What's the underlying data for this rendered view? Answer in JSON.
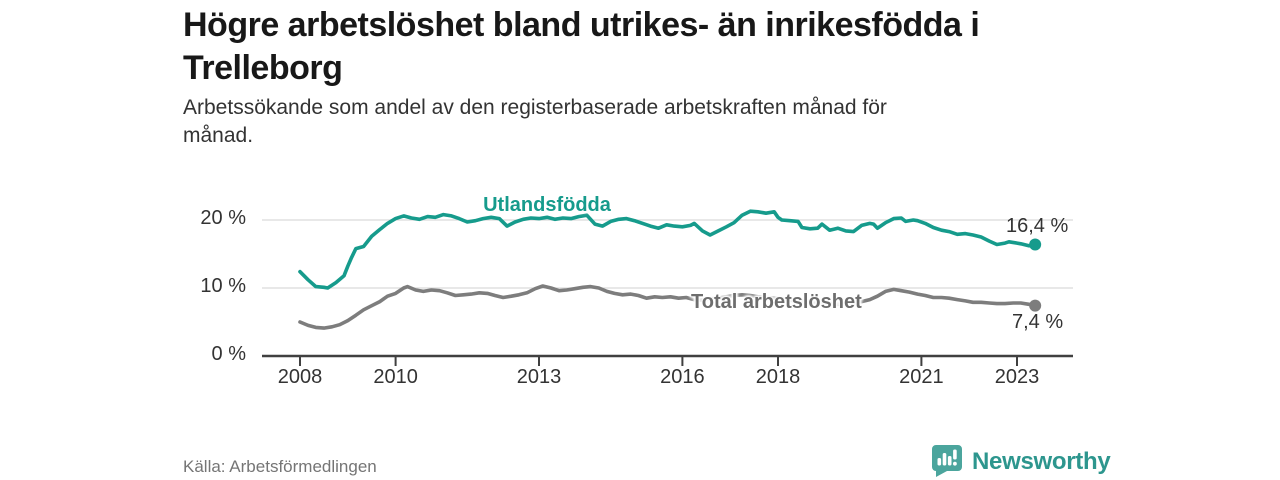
{
  "header": {
    "title": "Högre arbetslöshet bland utrikes- än inrikesfödda i Trelleborg",
    "subtitle": "Arbetssökande som andel av den registerbaserade arbetskraften månad för månad."
  },
  "chart_data": {
    "type": "line",
    "title": "Högre arbetslöshet bland utrikes- än inrikesfödda i Trelleborg",
    "subtitle": "Arbetssökande som andel av den registerbaserade arbetskraften månad för månad.",
    "unit": "%",
    "grid": "horizontal",
    "legend": "inline-labels",
    "x_axis": {
      "ticks": [
        2008,
        2010,
        2013,
        2016,
        2018,
        2021,
        2023
      ],
      "tick_labels": [
        "2008",
        "2010",
        "2013",
        "2016",
        "2018",
        "2021",
        "2023"
      ],
      "range": [
        2007.2,
        2024.3
      ]
    },
    "y_axis": {
      "ticks": [
        0,
        10,
        20
      ],
      "tick_labels": [
        "0 %",
        "10 %",
        "20 %"
      ],
      "range": [
        0,
        23
      ]
    },
    "series": [
      {
        "name": "Utlandsfödda",
        "color": "#169b8c",
        "end_label": "16,4 %",
        "end_value": 16.4,
        "points": [
          [
            2008.0,
            12.4
          ],
          [
            2008.17,
            11.2
          ],
          [
            2008.33,
            10.2
          ],
          [
            2008.5,
            10.1
          ],
          [
            2008.58,
            10.0
          ],
          [
            2008.75,
            10.8
          ],
          [
            2008.92,
            11.8
          ],
          [
            2009.0,
            13.2
          ],
          [
            2009.08,
            14.5
          ],
          [
            2009.17,
            15.8
          ],
          [
            2009.33,
            16.1
          ],
          [
            2009.5,
            17.6
          ],
          [
            2009.67,
            18.6
          ],
          [
            2009.83,
            19.5
          ],
          [
            2010.0,
            20.2
          ],
          [
            2010.17,
            20.6
          ],
          [
            2010.33,
            20.3
          ],
          [
            2010.5,
            20.1
          ],
          [
            2010.67,
            20.5
          ],
          [
            2010.83,
            20.4
          ],
          [
            2011.0,
            20.8
          ],
          [
            2011.17,
            20.6
          ],
          [
            2011.33,
            20.2
          ],
          [
            2011.5,
            19.7
          ],
          [
            2011.67,
            19.9
          ],
          [
            2011.83,
            20.2
          ],
          [
            2012.0,
            20.4
          ],
          [
            2012.17,
            20.2
          ],
          [
            2012.33,
            19.1
          ],
          [
            2012.5,
            19.7
          ],
          [
            2012.67,
            20.1
          ],
          [
            2012.83,
            20.3
          ],
          [
            2013.0,
            20.2
          ],
          [
            2013.17,
            20.4
          ],
          [
            2013.33,
            20.1
          ],
          [
            2013.5,
            20.3
          ],
          [
            2013.67,
            20.2
          ],
          [
            2013.83,
            20.5
          ],
          [
            2014.0,
            20.7
          ],
          [
            2014.17,
            19.4
          ],
          [
            2014.33,
            19.1
          ],
          [
            2014.5,
            19.8
          ],
          [
            2014.67,
            20.1
          ],
          [
            2014.83,
            20.2
          ],
          [
            2015.0,
            19.9
          ],
          [
            2015.17,
            19.5
          ],
          [
            2015.33,
            19.1
          ],
          [
            2015.5,
            18.8
          ],
          [
            2015.67,
            19.3
          ],
          [
            2015.83,
            19.1
          ],
          [
            2016.0,
            19.0
          ],
          [
            2016.17,
            19.2
          ],
          [
            2016.25,
            19.5
          ],
          [
            2016.42,
            18.4
          ],
          [
            2016.58,
            17.8
          ],
          [
            2016.75,
            18.4
          ],
          [
            2016.92,
            19.0
          ],
          [
            2017.08,
            19.6
          ],
          [
            2017.25,
            20.7
          ],
          [
            2017.42,
            21.3
          ],
          [
            2017.58,
            21.2
          ],
          [
            2017.75,
            21.0
          ],
          [
            2017.92,
            21.2
          ],
          [
            2018.0,
            20.4
          ],
          [
            2018.08,
            20.0
          ],
          [
            2018.25,
            19.9
          ],
          [
            2018.42,
            19.8
          ],
          [
            2018.5,
            18.9
          ],
          [
            2018.67,
            18.7
          ],
          [
            2018.83,
            18.8
          ],
          [
            2018.92,
            19.4
          ],
          [
            2019.08,
            18.5
          ],
          [
            2019.25,
            18.8
          ],
          [
            2019.42,
            18.4
          ],
          [
            2019.58,
            18.3
          ],
          [
            2019.75,
            19.2
          ],
          [
            2019.92,
            19.5
          ],
          [
            2020.0,
            19.4
          ],
          [
            2020.08,
            18.8
          ],
          [
            2020.25,
            19.6
          ],
          [
            2020.42,
            20.2
          ],
          [
            2020.58,
            20.3
          ],
          [
            2020.67,
            19.8
          ],
          [
            2020.83,
            20.0
          ],
          [
            2020.92,
            19.9
          ],
          [
            2021.08,
            19.5
          ],
          [
            2021.25,
            18.9
          ],
          [
            2021.42,
            18.5
          ],
          [
            2021.58,
            18.3
          ],
          [
            2021.75,
            17.9
          ],
          [
            2021.92,
            18.0
          ],
          [
            2022.08,
            17.8
          ],
          [
            2022.25,
            17.5
          ],
          [
            2022.42,
            16.9
          ],
          [
            2022.58,
            16.4
          ],
          [
            2022.75,
            16.6
          ],
          [
            2022.83,
            16.8
          ],
          [
            2023.0,
            16.6
          ],
          [
            2023.08,
            16.5
          ],
          [
            2023.25,
            16.2
          ],
          [
            2023.38,
            16.4
          ]
        ]
      },
      {
        "name": "Total arbetslöshet",
        "color": "#7d7d7d",
        "end_label": "7,4 %",
        "end_value": 7.4,
        "points": [
          [
            2008.0,
            5.0
          ],
          [
            2008.17,
            4.5
          ],
          [
            2008.33,
            4.2
          ],
          [
            2008.5,
            4.1
          ],
          [
            2008.67,
            4.3
          ],
          [
            2008.83,
            4.6
          ],
          [
            2009.0,
            5.2
          ],
          [
            2009.17,
            6.0
          ],
          [
            2009.33,
            6.8
          ],
          [
            2009.5,
            7.4
          ],
          [
            2009.67,
            8.0
          ],
          [
            2009.83,
            8.8
          ],
          [
            2010.0,
            9.2
          ],
          [
            2010.17,
            10.0
          ],
          [
            2010.25,
            10.2
          ],
          [
            2010.42,
            9.7
          ],
          [
            2010.58,
            9.5
          ],
          [
            2010.75,
            9.7
          ],
          [
            2010.92,
            9.6
          ],
          [
            2011.08,
            9.3
          ],
          [
            2011.25,
            8.9
          ],
          [
            2011.42,
            9.0
          ],
          [
            2011.58,
            9.1
          ],
          [
            2011.75,
            9.3
          ],
          [
            2011.92,
            9.2
          ],
          [
            2012.08,
            8.9
          ],
          [
            2012.25,
            8.6
          ],
          [
            2012.42,
            8.8
          ],
          [
            2012.58,
            9.0
          ],
          [
            2012.75,
            9.3
          ],
          [
            2012.92,
            9.9
          ],
          [
            2013.08,
            10.3
          ],
          [
            2013.25,
            10.0
          ],
          [
            2013.42,
            9.6
          ],
          [
            2013.58,
            9.7
          ],
          [
            2013.75,
            9.9
          ],
          [
            2013.92,
            10.1
          ],
          [
            2014.08,
            10.2
          ],
          [
            2014.25,
            10.0
          ],
          [
            2014.42,
            9.5
          ],
          [
            2014.58,
            9.2
          ],
          [
            2014.75,
            9.0
          ],
          [
            2014.92,
            9.1
          ],
          [
            2015.08,
            8.9
          ],
          [
            2015.25,
            8.5
          ],
          [
            2015.42,
            8.7
          ],
          [
            2015.58,
            8.6
          ],
          [
            2015.75,
            8.7
          ],
          [
            2015.92,
            8.5
          ],
          [
            2016.08,
            8.6
          ],
          [
            2016.25,
            8.3
          ],
          [
            2016.42,
            8.2
          ],
          [
            2016.58,
            8.4
          ],
          [
            2016.75,
            8.5
          ],
          [
            2016.92,
            8.7
          ],
          [
            2017.08,
            8.9
          ],
          [
            2017.25,
            9.0
          ],
          [
            2017.42,
            8.9
          ],
          [
            2017.58,
            8.7
          ],
          [
            2017.75,
            8.6
          ],
          [
            2017.92,
            8.5
          ],
          [
            2018.08,
            8.4
          ],
          [
            2018.25,
            8.2
          ],
          [
            2018.42,
            8.1
          ],
          [
            2018.58,
            8.0
          ],
          [
            2018.75,
            7.9
          ],
          [
            2018.92,
            7.8
          ],
          [
            2019.08,
            7.7
          ],
          [
            2019.25,
            7.6
          ],
          [
            2019.42,
            7.7
          ],
          [
            2019.58,
            7.8
          ],
          [
            2019.75,
            8.0
          ],
          [
            2019.92,
            8.3
          ],
          [
            2020.08,
            8.8
          ],
          [
            2020.25,
            9.5
          ],
          [
            2020.42,
            9.8
          ],
          [
            2020.58,
            9.6
          ],
          [
            2020.75,
            9.4
          ],
          [
            2020.92,
            9.1
          ],
          [
            2021.08,
            8.9
          ],
          [
            2021.25,
            8.6
          ],
          [
            2021.42,
            8.6
          ],
          [
            2021.58,
            8.5
          ],
          [
            2021.75,
            8.3
          ],
          [
            2021.92,
            8.1
          ],
          [
            2022.08,
            7.9
          ],
          [
            2022.25,
            7.9
          ],
          [
            2022.42,
            7.8
          ],
          [
            2022.58,
            7.7
          ],
          [
            2022.75,
            7.7
          ],
          [
            2022.92,
            7.8
          ],
          [
            2023.08,
            7.8
          ],
          [
            2023.25,
            7.6
          ],
          [
            2023.38,
            7.4
          ]
        ]
      }
    ]
  },
  "footer": {
    "source": "Källa: Arbetsförmedlingen",
    "brand": "Newsworthy"
  },
  "colors": {
    "accent_teal": "#169b8c",
    "line_gray": "#7d7d7d",
    "series_label_gray": "#6d6d6d",
    "text_dark": "#181818",
    "text_medium": "#333333",
    "muted": "#757575",
    "grid": "#d9d9d9",
    "axis": "#404040",
    "brand_teal": "#2d968e",
    "brand_icon_teal": "#4ba59d"
  }
}
